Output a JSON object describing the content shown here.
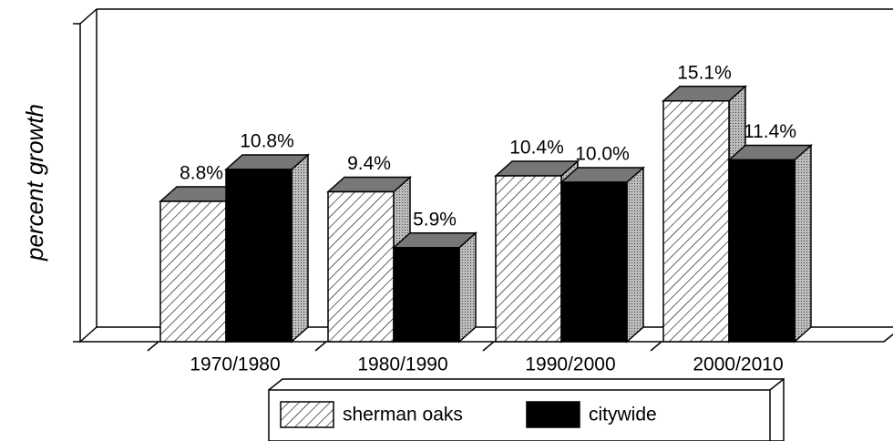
{
  "chart_data": {
    "type": "bar3d",
    "y_label": "percent growth",
    "categories": [
      "1970/1980",
      "1980/1990",
      "1990/2000",
      "2000/2010"
    ],
    "series": [
      {
        "name": "sherman oaks",
        "color": "#ffffff",
        "hatch": true,
        "values": [
          8.8,
          9.4,
          10.4,
          15.1
        ],
        "value_labels": [
          "8.8%",
          "9.4%",
          "10.4%",
          "15.1%"
        ]
      },
      {
        "name": "citywide",
        "color": "#000000",
        "hatch": false,
        "values": [
          10.8,
          5.9,
          10.0,
          11.4
        ],
        "value_labels": [
          "10.8%",
          "5.9%",
          "10.0%",
          "11.4%"
        ]
      }
    ],
    "ylim": [
      0,
      20
    ]
  }
}
